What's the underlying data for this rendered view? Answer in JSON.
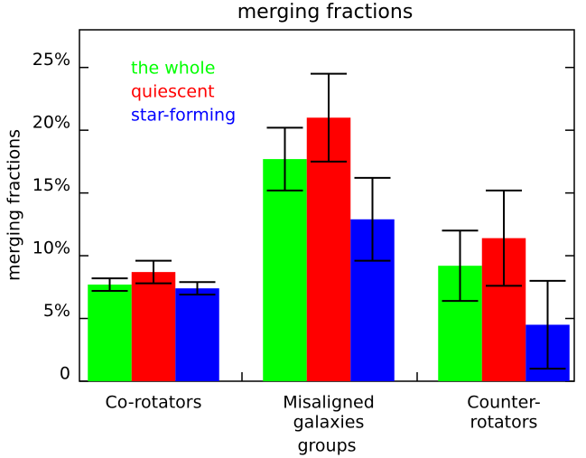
{
  "chart_data": {
    "type": "bar",
    "title": "merging fractions",
    "x_label": "groups",
    "y_label": "merging fractions",
    "categories": [
      [
        "Co-rotators"
      ],
      [
        "Misaligned",
        "galaxies"
      ],
      [
        "Counter-",
        "rotators"
      ]
    ],
    "series": [
      {
        "name": "the whole",
        "color": "#00ff00",
        "values": [
          7.7,
          17.7,
          9.2
        ],
        "errors": [
          0.5,
          2.5,
          2.8
        ]
      },
      {
        "name": "quiescent",
        "color": "#ff0000",
        "values": [
          8.7,
          21.0,
          11.4
        ],
        "errors": [
          0.9,
          3.5,
          3.8
        ]
      },
      {
        "name": "star-forming",
        "color": "#0000ff",
        "values": [
          7.4,
          12.9,
          4.5
        ],
        "errors": [
          0.5,
          3.3,
          3.5
        ]
      }
    ],
    "ylim": [
      0,
      28
    ],
    "yticks": [
      0,
      {
        "value": 5,
        "label": "5%"
      },
      {
        "value": 10,
        "label": "10%"
      },
      {
        "value": 15,
        "label": "15%"
      },
      {
        "value": 20,
        "label": "20%"
      },
      {
        "value": 25,
        "label": "25%"
      }
    ],
    "legend_position": "upper left"
  }
}
